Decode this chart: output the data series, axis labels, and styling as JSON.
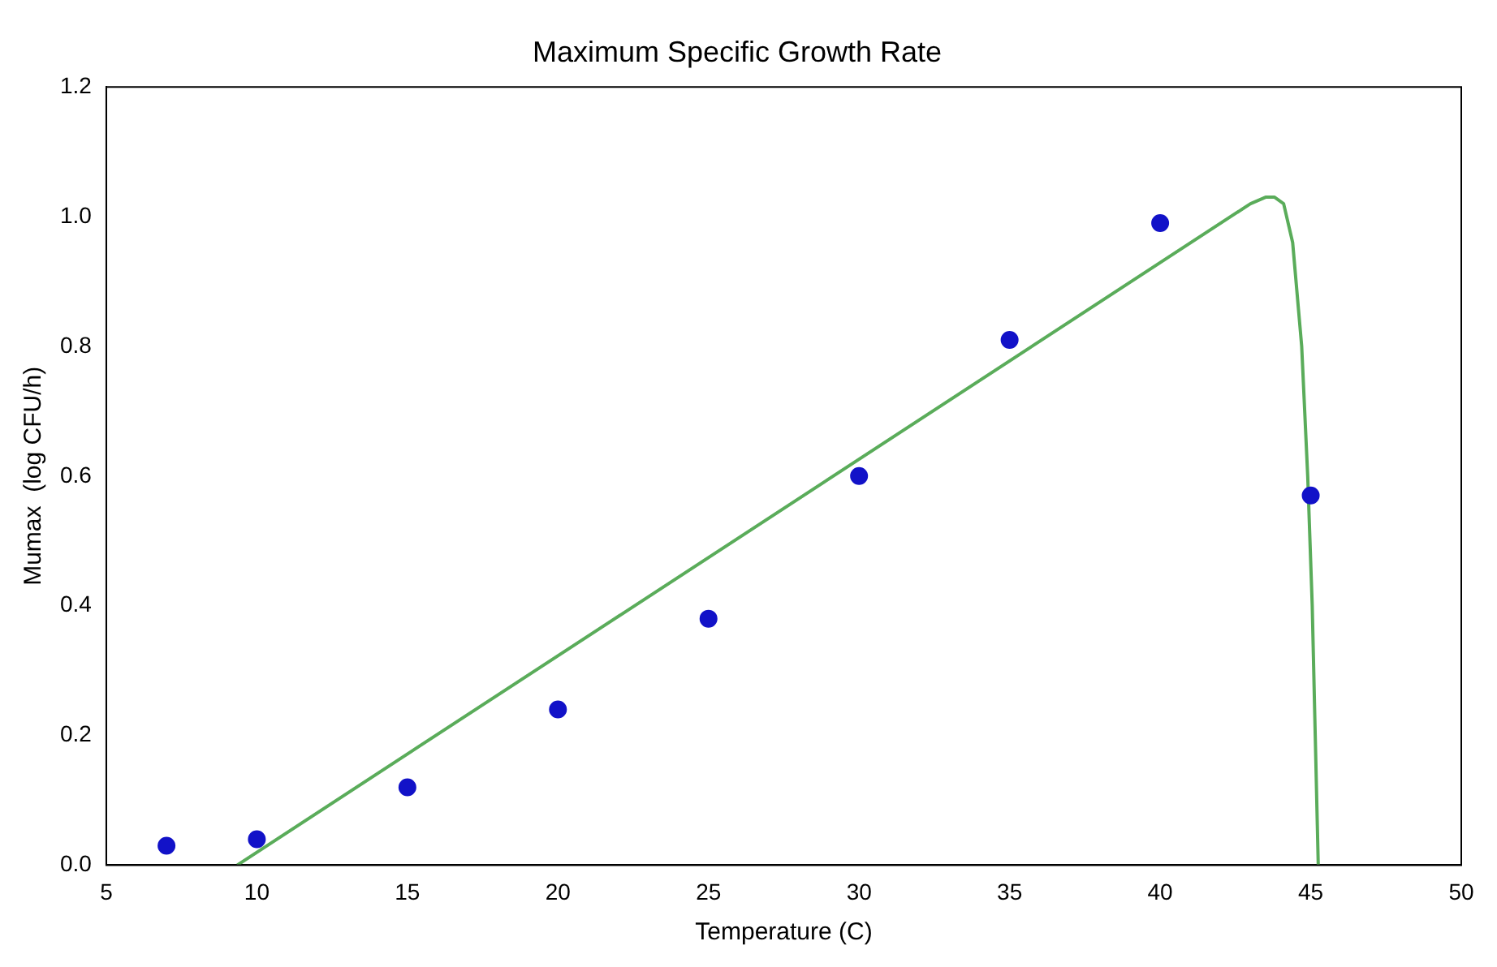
{
  "chart_data": {
    "type": "scatter",
    "title": "Maximum Specific Growth Rate",
    "xlabel": "Temperature (C)",
    "ylabel": "Mumax  (log CFU/h)",
    "series": [
      {
        "marker": "circle",
        "color": "#1212c8",
        "x": [
          7,
          10,
          15,
          20,
          25,
          30,
          35,
          40,
          45
        ],
        "values": [
          0.03,
          0.04,
          0.12,
          0.24,
          0.38,
          0.6,
          0.81,
          0.99,
          0.57
        ]
      },
      {
        "type": "line",
        "marker": "none",
        "color": "#5aac5a",
        "x": [
          9.35,
          43,
          43.5,
          43.8,
          44.1,
          44.4,
          44.7,
          44.9,
          45.05,
          45.15,
          45.25
        ],
        "values": [
          0,
          1.02,
          1.03,
          1.03,
          1.02,
          0.96,
          0.8,
          0.6,
          0.4,
          0.2,
          0
        ]
      }
    ],
    "xlim": [
      5,
      50
    ],
    "xticks": [
      5,
      10,
      15,
      20,
      25,
      30,
      35,
      40,
      45,
      50
    ],
    "ylim": [
      0,
      1.2
    ],
    "yticks": [
      {
        "value": 0,
        "label": "0.0"
      },
      {
        "value": 0.2,
        "label": "0.2"
      },
      {
        "value": 0.4,
        "label": "0.4"
      },
      {
        "value": 0.6,
        "label": "0.6"
      },
      {
        "value": 0.8,
        "label": "0.8"
      },
      {
        "value": 1,
        "label": "1.0"
      },
      {
        "value": 1.2,
        "label": "1.2"
      }
    ],
    "grid": false,
    "legend": false,
    "line_style": "solid"
  }
}
